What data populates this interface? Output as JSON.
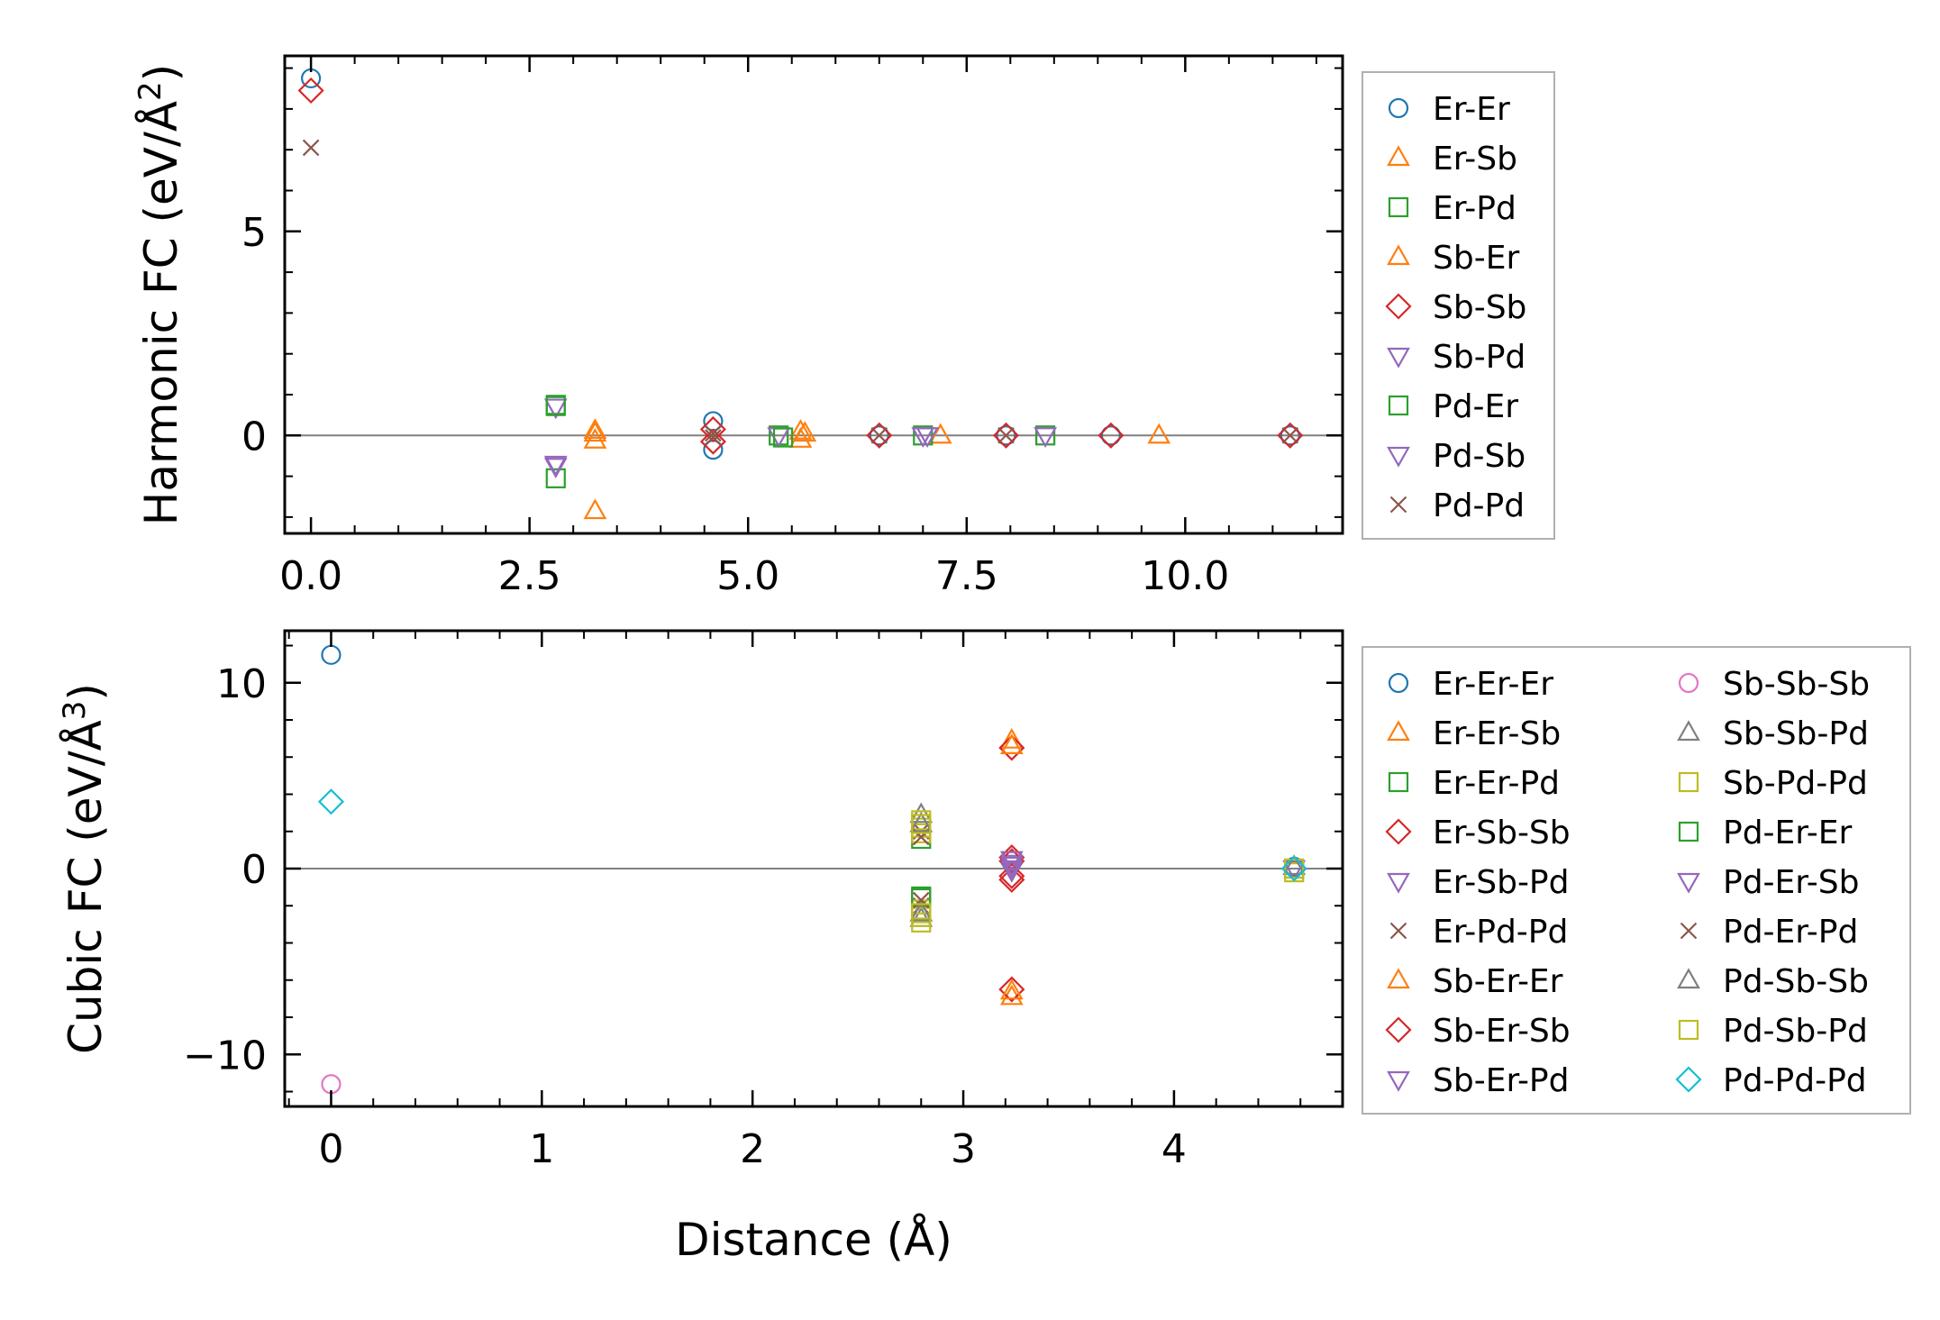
{
  "chart_data": [
    {
      "type": "scatter",
      "panel": "top",
      "ylabel": "Harmonic FC (eV/Å",
      "ylabel_sup": "2",
      "ylabel_close": ")",
      "xlabel": "",
      "xlim": [
        -0.3,
        11.8
      ],
      "ylim": [
        -2.4,
        9.3
      ],
      "xticks": [
        0.0,
        2.5,
        5.0,
        7.5,
        10.0
      ],
      "xtick_labels": [
        "0.0",
        "2.5",
        "5.0",
        "7.5",
        "10.0"
      ],
      "yticks": [
        0,
        5
      ],
      "ytick_labels": [
        "0",
        "5"
      ],
      "zero_line": true,
      "legend_position": "outside-right",
      "series": [
        {
          "name": "Er-Er",
          "marker": "circle",
          "color": "#1f77b4",
          "points": [
            [
              0,
              8.75
            ],
            [
              4.6,
              0.35
            ],
            [
              4.6,
              -0.35
            ],
            [
              6.5,
              0
            ],
            [
              7.95,
              0
            ],
            [
              9.15,
              0
            ],
            [
              11.2,
              0
            ]
          ]
        },
        {
          "name": "Er-Sb",
          "marker": "triangle-up",
          "color": "#ff7f0e",
          "points": [
            [
              3.25,
              0.12
            ],
            [
              3.25,
              -0.12
            ],
            [
              3.25,
              -1.85
            ],
            [
              5.6,
              0.1
            ],
            [
              5.6,
              -0.1
            ],
            [
              7.2,
              0
            ],
            [
              9.7,
              0
            ]
          ]
        },
        {
          "name": "Er-Pd",
          "marker": "square",
          "color": "#2ca02c",
          "points": [
            [
              2.8,
              0.75
            ],
            [
              2.8,
              -1.05
            ],
            [
              5.35,
              0
            ],
            [
              7.0,
              0
            ],
            [
              8.4,
              0
            ]
          ]
        },
        {
          "name": "Sb-Er",
          "marker": "triangle-up",
          "color": "#ff7f0e",
          "points": [
            [
              3.25,
              0.05
            ],
            [
              5.65,
              0.05
            ]
          ]
        },
        {
          "name": "Sb-Sb",
          "marker": "diamond",
          "color": "#d62728",
          "points": [
            [
              0,
              8.45
            ],
            [
              4.6,
              0.15
            ],
            [
              4.6,
              -0.15
            ],
            [
              6.5,
              0
            ],
            [
              7.95,
              0
            ],
            [
              9.15,
              0
            ],
            [
              11.2,
              0
            ]
          ]
        },
        {
          "name": "Sb-Pd",
          "marker": "triangle-down",
          "color": "#9467bd",
          "points": [
            [
              2.8,
              0.7
            ],
            [
              2.8,
              -0.7
            ],
            [
              5.35,
              0
            ],
            [
              7.0,
              0
            ],
            [
              8.4,
              0
            ]
          ]
        },
        {
          "name": "Pd-Er",
          "marker": "square",
          "color": "#2ca02c",
          "points": [
            [
              2.8,
              0.72
            ],
            [
              5.4,
              -0.05
            ]
          ]
        },
        {
          "name": "Pd-Sb",
          "marker": "triangle-down",
          "color": "#9467bd",
          "points": [
            [
              2.8,
              -0.75
            ],
            [
              7.05,
              0
            ]
          ]
        },
        {
          "name": "Pd-Pd",
          "marker": "x",
          "color": "#8c564b",
          "points": [
            [
              0,
              7.05
            ],
            [
              4.6,
              0.05
            ],
            [
              4.6,
              -0.05
            ],
            [
              6.5,
              0
            ],
            [
              7.95,
              0
            ],
            [
              11.2,
              0
            ]
          ]
        }
      ]
    },
    {
      "type": "scatter",
      "panel": "bottom",
      "ylabel": "Cubic FC (eV/Å",
      "ylabel_sup": "3",
      "ylabel_close": ")",
      "xlabel": "Distance (Å)",
      "xlim": [
        -0.22,
        4.8
      ],
      "ylim": [
        -12.8,
        12.8
      ],
      "xticks": [
        0,
        1,
        2,
        3,
        4
      ],
      "xtick_labels": [
        "0",
        "1",
        "2",
        "3",
        "4"
      ],
      "yticks": [
        -10,
        0,
        10
      ],
      "ytick_labels": [
        "−10",
        "0",
        "10"
      ],
      "zero_line": true,
      "legend_position": "outside-right",
      "series": [
        {
          "name": "Er-Er-Er",
          "marker": "circle",
          "color": "#1f77b4",
          "points": [
            [
              0,
              11.5
            ],
            [
              4.57,
              0.1
            ]
          ]
        },
        {
          "name": "Er-Er-Sb",
          "marker": "triangle-up",
          "color": "#ff7f0e",
          "points": [
            [
              3.23,
              6.9
            ],
            [
              3.23,
              -6.9
            ]
          ]
        },
        {
          "name": "Er-Er-Pd",
          "marker": "square",
          "color": "#2ca02c",
          "points": [
            [
              2.8,
              1.6
            ],
            [
              2.8,
              -1.6
            ]
          ]
        },
        {
          "name": "Er-Sb-Sb",
          "marker": "diamond",
          "color": "#d62728",
          "points": [
            [
              3.23,
              6.5
            ],
            [
              3.23,
              -6.5
            ],
            [
              3.23,
              0.6
            ],
            [
              3.23,
              -0.6
            ]
          ]
        },
        {
          "name": "Er-Sb-Pd",
          "marker": "triangle-down",
          "color": "#9467bd",
          "points": [
            [
              3.23,
              0.3
            ],
            [
              3.23,
              -0.1
            ]
          ]
        },
        {
          "name": "Er-Pd-Pd",
          "marker": "x",
          "color": "#8c564b",
          "points": [
            [
              2.8,
              2.0
            ],
            [
              2.8,
              -2.0
            ]
          ]
        },
        {
          "name": "Sb-Er-Er",
          "marker": "triangle-up",
          "color": "#ff7f0e",
          "points": [
            [
              3.23,
              6.6
            ],
            [
              3.23,
              -6.6
            ]
          ]
        },
        {
          "name": "Sb-Er-Sb",
          "marker": "diamond",
          "color": "#d62728",
          "points": [
            [
              3.23,
              0.4
            ],
            [
              3.23,
              -0.4
            ]
          ]
        },
        {
          "name": "Sb-Er-Pd",
          "marker": "triangle-down",
          "color": "#9467bd",
          "points": [
            [
              3.23,
              0.5
            ],
            [
              3.23,
              0.0
            ]
          ]
        },
        {
          "name": "Sb-Sb-Sb",
          "marker": "circle",
          "color": "#e377c2",
          "points": [
            [
              0,
              -11.6
            ]
          ]
        },
        {
          "name": "Sb-Sb-Pd",
          "marker": "triangle-up",
          "color": "#7f7f7f",
          "points": [
            [
              2.8,
              2.9
            ],
            [
              2.8,
              -2.7
            ]
          ]
        },
        {
          "name": "Sb-Pd-Pd",
          "marker": "square",
          "color": "#bcbd22",
          "points": [
            [
              2.8,
              2.6
            ],
            [
              2.8,
              2.2
            ],
            [
              2.8,
              1.9
            ],
            [
              2.8,
              -2.2
            ],
            [
              2.8,
              -2.6
            ],
            [
              2.8,
              -2.9
            ],
            [
              4.57,
              -0.2
            ]
          ]
        },
        {
          "name": "Pd-Er-Er",
          "marker": "square",
          "color": "#2ca02c",
          "points": [
            [
              2.8,
              -1.5
            ],
            [
              4.57,
              0.0
            ]
          ]
        },
        {
          "name": "Pd-Er-Sb",
          "marker": "triangle-down",
          "color": "#9467bd",
          "points": [
            [
              3.23,
              0.2
            ],
            [
              4.57,
              0.0
            ]
          ]
        },
        {
          "name": "Pd-Er-Pd",
          "marker": "x",
          "color": "#8c564b",
          "points": [
            [
              2.8,
              1.7
            ],
            [
              2.8,
              -1.7
            ]
          ]
        },
        {
          "name": "Pd-Sb-Sb",
          "marker": "triangle-up",
          "color": "#7f7f7f",
          "points": [
            [
              2.8,
              2.4
            ],
            [
              2.8,
              -2.4
            ],
            [
              4.57,
              0.1
            ]
          ]
        },
        {
          "name": "Pd-Sb-Pd",
          "marker": "square",
          "color": "#bcbd22",
          "points": [
            [
              2.8,
              2.4
            ],
            [
              2.8,
              -2.4
            ],
            [
              4.57,
              0.0
            ]
          ]
        },
        {
          "name": "Pd-Pd-Pd",
          "marker": "diamond",
          "color": "#17becf",
          "points": [
            [
              0,
              3.6
            ],
            [
              4.57,
              0.0
            ]
          ]
        }
      ]
    }
  ]
}
